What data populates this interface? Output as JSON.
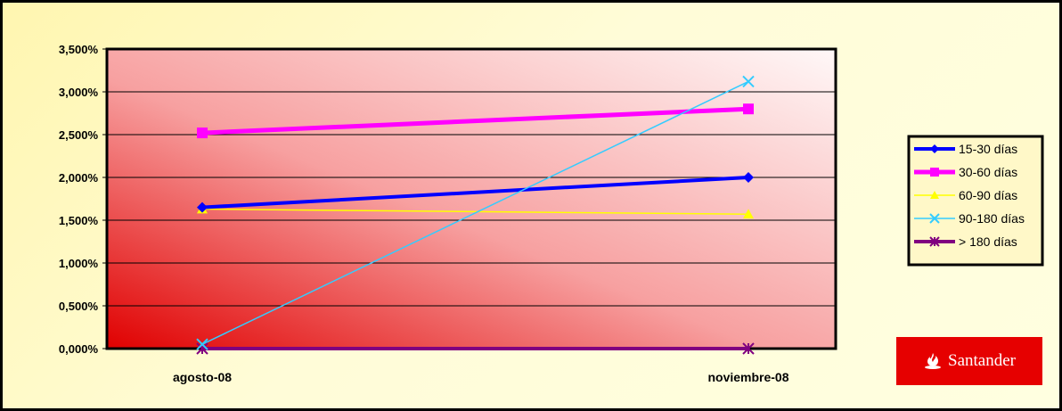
{
  "chart_data": {
    "type": "line",
    "categories": [
      "agosto-08",
      "noviembre-08"
    ],
    "y_ticks": [
      "0,000%",
      "0,500%",
      "1,000%",
      "1,500%",
      "2,000%",
      "2,500%",
      "3,000%",
      "3,500%"
    ],
    "ylim": [
      0,
      3.5
    ],
    "grid": true,
    "legend_position": "right",
    "series": [
      {
        "name": "15-30 días",
        "values": [
          1.65,
          2.0
        ],
        "color": "#0000ff",
        "marker": "diamond"
      },
      {
        "name": "30-60 días",
        "values": [
          2.52,
          2.8
        ],
        "color": "#ff00ff",
        "marker": "square"
      },
      {
        "name": "60-90 días",
        "values": [
          1.63,
          1.57
        ],
        "color": "#ffff00",
        "marker": "triangle"
      },
      {
        "name": "90-180 días",
        "values": [
          0.05,
          3.12
        ],
        "color": "#33ccff",
        "marker": "x"
      },
      {
        "name": "> 180 días",
        "values": [
          0.0,
          0.0
        ],
        "color": "#800080",
        "marker": "star"
      }
    ]
  },
  "logo": {
    "text": "Santander",
    "color": "#e60000"
  }
}
